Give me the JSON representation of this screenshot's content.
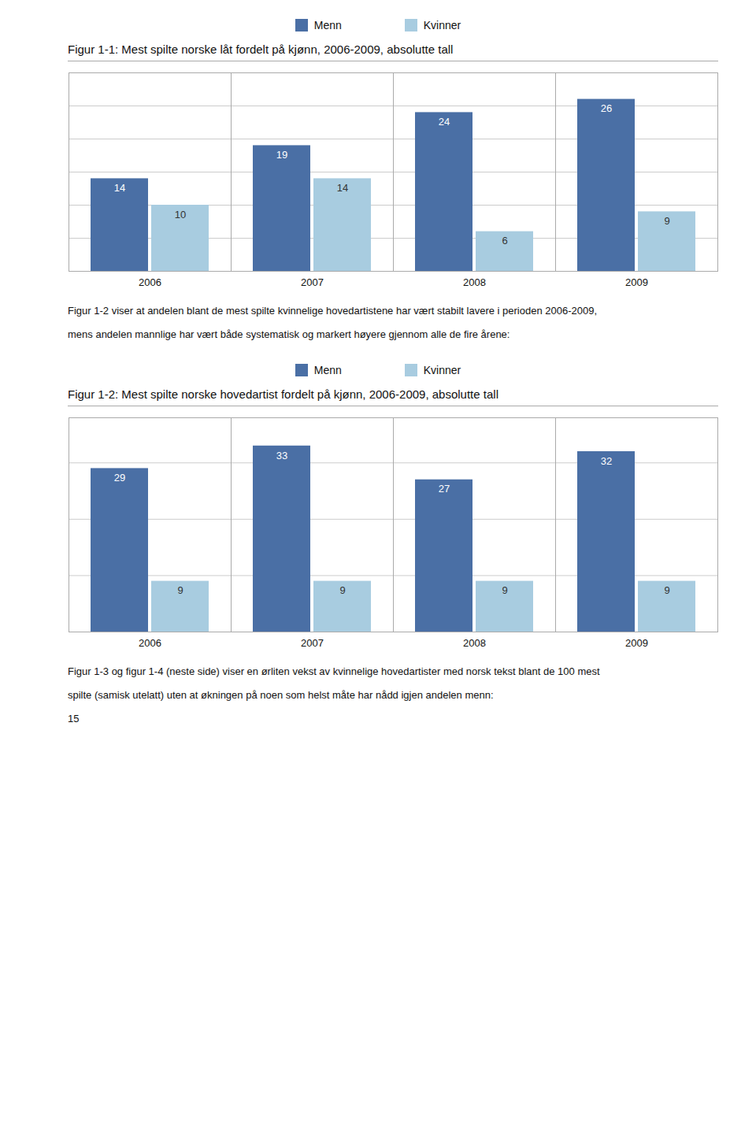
{
  "chart_data": [
    {
      "type": "bar",
      "title": "Figur 1-1: Mest spilte norske låt fordelt på kjønn, 2006-2009, absolutte tall",
      "categories": [
        "2006",
        "2007",
        "2008",
        "2009"
      ],
      "series": [
        {
          "name": "Menn",
          "color": "#4a6fa5",
          "values": [
            14,
            19,
            24,
            26
          ]
        },
        {
          "name": "Kvinner",
          "color": "#a8cce0",
          "values": [
            10,
            14,
            6,
            9
          ]
        }
      ],
      "ylim": [
        0,
        30
      ],
      "yticks": [
        5,
        10,
        15,
        20,
        25
      ],
      "grid": true,
      "legend": "top",
      "data_labels": true,
      "tick_labels": "x",
      "annotations": [
        "Figur 1-2 viser at andelen blant de mest spilte kvinnelige hovedartistene har vært stabilt lavere i perioden 2006-2009,",
        "mens andelen mannlige har vært både systematisk og markert høyere gjennom alle de fire årene:"
      ]
    },
    {
      "type": "bar",
      "title": "Figur 1-2: Mest spilte norske hovedartist fordelt på kjønn, 2006-2009, absolutte tall",
      "categories": [
        "2006",
        "2007",
        "2008",
        "2009"
      ],
      "series": [
        {
          "name": "Menn",
          "color": "#4a6fa5",
          "values": [
            29,
            33,
            27,
            32
          ]
        },
        {
          "name": "Kvinner",
          "color": "#a8cce0",
          "values": [
            9,
            9,
            9,
            9
          ]
        }
      ],
      "ylim": [
        0,
        38
      ],
      "yticks": [
        10,
        20,
        30
      ],
      "grid": true,
      "legend": "top",
      "data_labels": true,
      "tick_labels": "x",
      "annotations": [
        "Figur 1-3 og figur 1-4 (neste side) viser en ørliten vekst av kvinnelige hovedartister med norsk tekst blant de 100 mest",
        "spilte (samisk utelatt) uten at økningen på noen som helst måte har nådd igjen andelen menn:",
        "15"
      ]
    }
  ]
}
